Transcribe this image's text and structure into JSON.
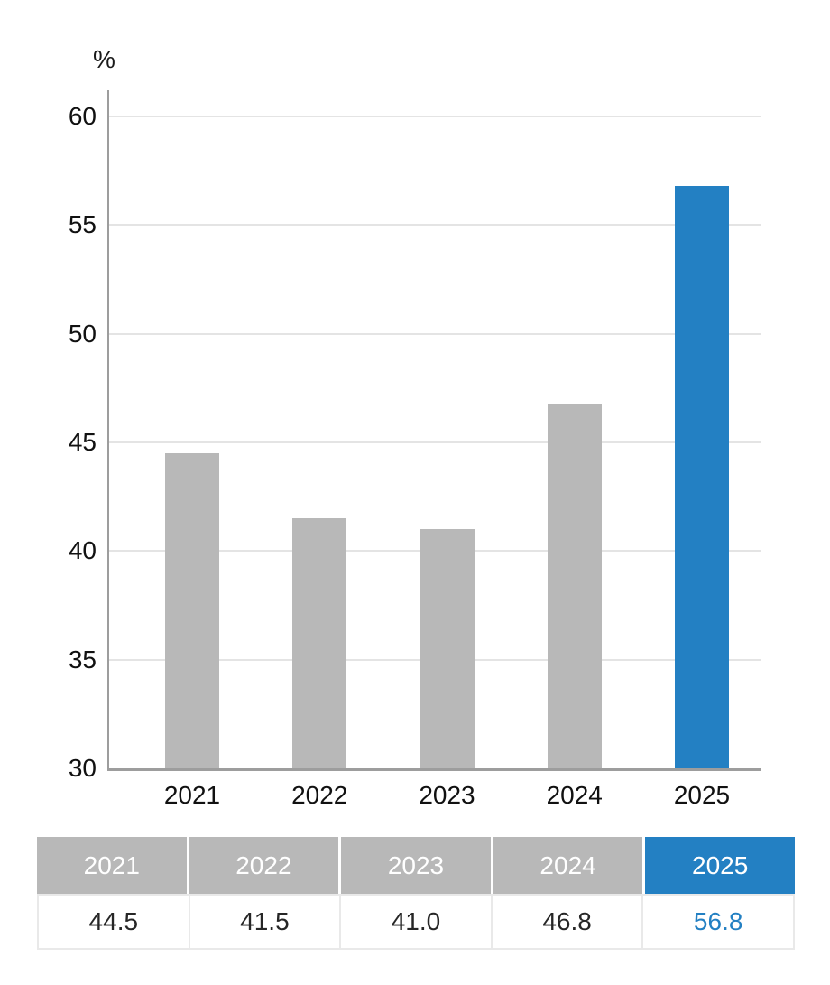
{
  "chart_data": {
    "type": "bar",
    "title": "",
    "unit_label": "%",
    "categories": [
      "2021",
      "2022",
      "2023",
      "2024",
      "2025"
    ],
    "values": [
      44.5,
      41.5,
      41.0,
      46.8,
      56.8
    ],
    "xlabel": "",
    "ylabel": "%",
    "ylim": [
      30,
      61.2
    ],
    "yticks": [
      30,
      35,
      40,
      45,
      50,
      55,
      60
    ],
    "grid": true,
    "legend_position": "none",
    "bar_colors": [
      "#b8b8b8",
      "#b8b8b8",
      "#b8b8b8",
      "#b8b8b8",
      "#2380c3"
    ],
    "highlighted_category": "2025"
  },
  "table": {
    "headers": [
      "2021",
      "2022",
      "2023",
      "2024",
      "2025"
    ],
    "values": [
      "44.5",
      "41.5",
      "41.0",
      "46.8",
      "56.8"
    ],
    "header_colors": [
      "#b8b8b8",
      "#b8b8b8",
      "#b8b8b8",
      "#b8b8b8",
      "#2380c3"
    ],
    "value_text_colors": [
      "#262626",
      "#262626",
      "#262626",
      "#262626",
      "#2380c3"
    ]
  },
  "colors": {
    "accent_blue": "#2380c3",
    "bar_gray": "#b8b8b8",
    "grid_line": "#e4e4e4",
    "axis_line": "#9d9d9d",
    "text_dark": "#111111"
  }
}
